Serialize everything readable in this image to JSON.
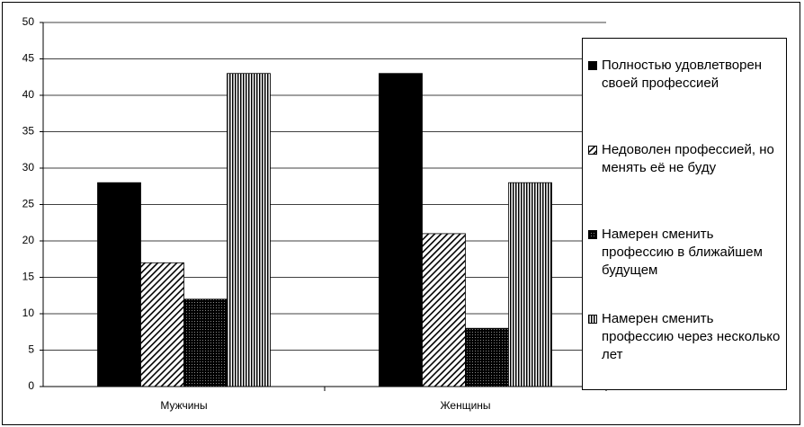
{
  "chart_data": {
    "type": "bar",
    "categories": [
      "Мужчины",
      "Женщины"
    ],
    "series": [
      {
        "name": "Полностью удовлетворен своей профессией",
        "color": "#000000",
        "pattern": "solid",
        "values": [
          28,
          43
        ]
      },
      {
        "name": "Недоволен профессией, но менять её не буду",
        "color": "#000000",
        "pattern": "diagonal",
        "values": [
          17,
          21
        ]
      },
      {
        "name": "Намерен сменить профессию в ближайшем будущем",
        "color": "#000000",
        "pattern": "grid",
        "values": [
          12,
          8
        ]
      },
      {
        "name": "Намерен сменить профессию через несколько лет",
        "color": "#000000",
        "pattern": "vertical",
        "values": [
          43,
          28
        ]
      }
    ],
    "ylim": [
      0,
      50
    ],
    "yticks": [
      0,
      5,
      10,
      15,
      20,
      25,
      30,
      35,
      40,
      45,
      50
    ],
    "grid": true,
    "legend": "right"
  }
}
